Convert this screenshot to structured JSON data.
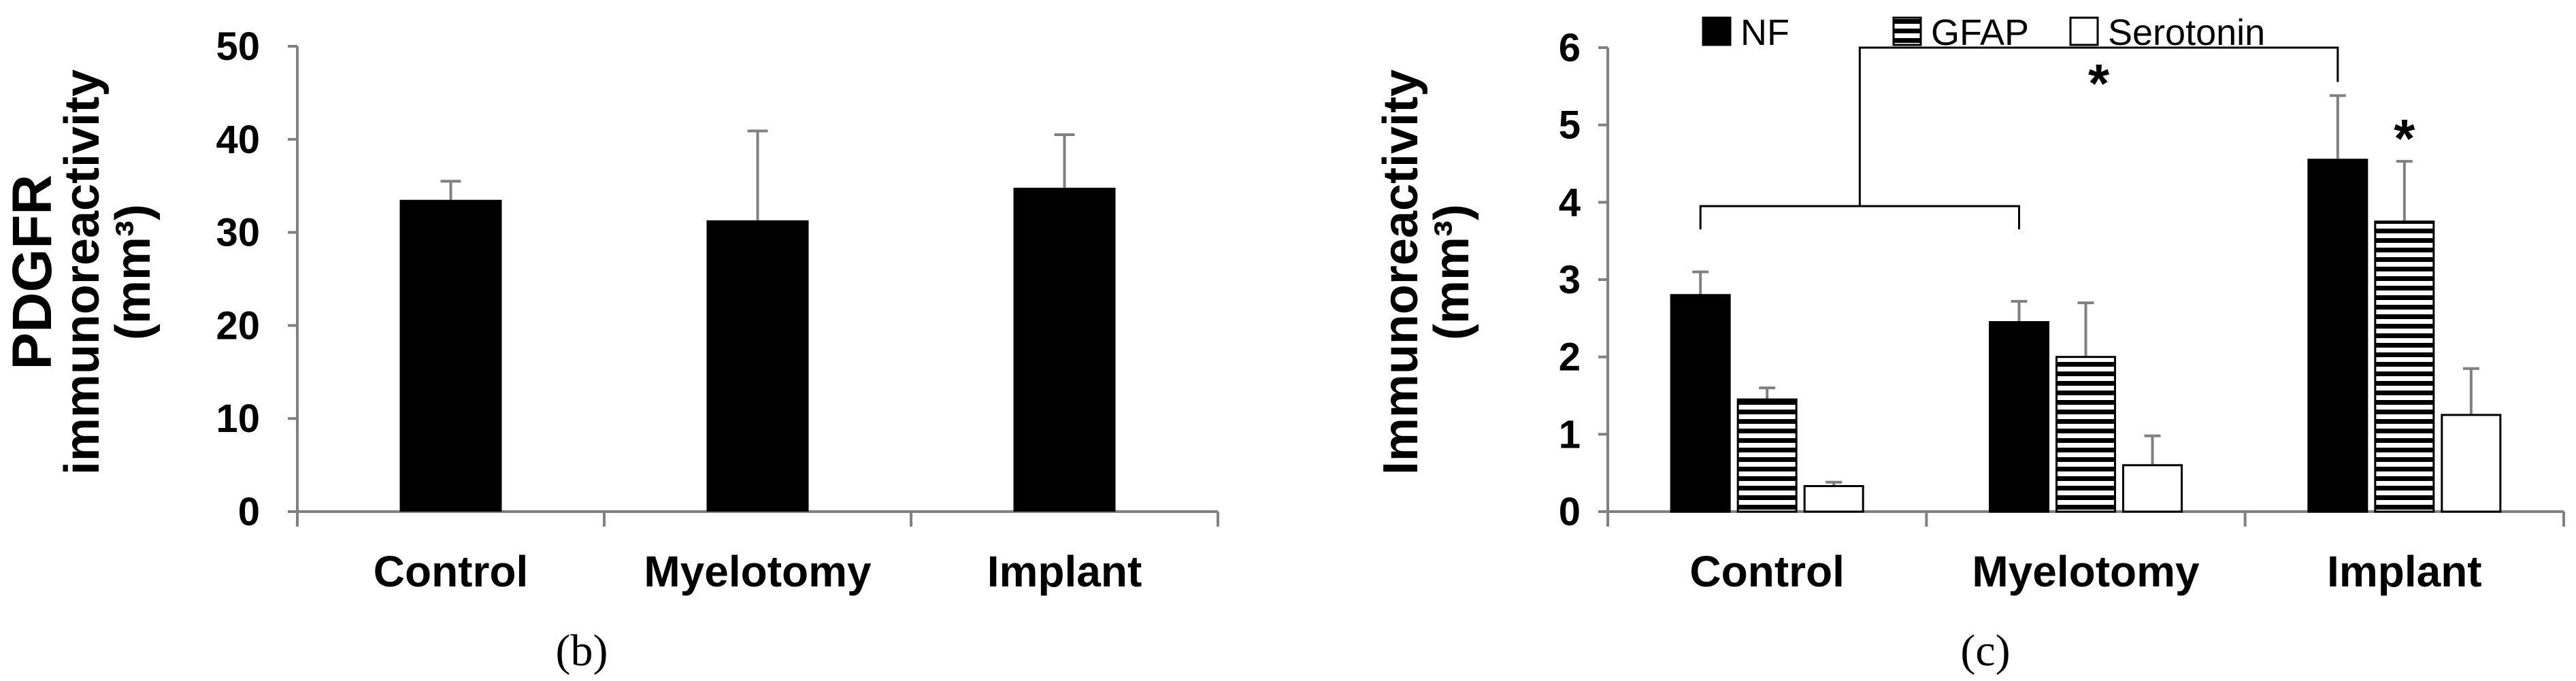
{
  "charts": [
    {
      "chart_data": {
        "type": "bar",
        "title": "",
        "panel_label": "(b)",
        "ylabel_line1": "PDGFR",
        "ylabel_line2": "immunoreactivity",
        "ylabel_line3": "(mm³)",
        "xlabel": "",
        "ylim": [
          0,
          50
        ],
        "yticks": [
          "0",
          "10",
          "20",
          "30",
          "40",
          "50"
        ],
        "categories": [
          "Control",
          "Myelotomy",
          "Implant"
        ],
        "series": [
          {
            "values": [
              33.5,
              31.3,
              34.8
            ],
            "errors": [
              2.0,
              9.6,
              5.7
            ],
            "color": "#000000"
          }
        ],
        "grid": false,
        "legend": "none"
      }
    },
    {
      "chart_data": {
        "type": "bar",
        "title": "",
        "panel_label": "(c)",
        "ylabel_line1": "Immunoreactivity",
        "ylabel_line2": "(mm³)",
        "xlabel": "",
        "ylim": [
          0,
          6
        ],
        "yticks": [
          "0",
          "1",
          "2",
          "3",
          "4",
          "5",
          "6"
        ],
        "categories": [
          "Control",
          "Myelotomy",
          "Implant"
        ],
        "series": [
          {
            "name": "NF",
            "fill": "solid-black",
            "values": [
              2.8,
              2.45,
              4.55
            ],
            "errors": [
              0.3,
              0.27,
              0.83
            ]
          },
          {
            "name": "GFAP",
            "fill": "horizontal-stripes",
            "values": [
              1.45,
              2.0,
              3.75
            ],
            "errors": [
              0.15,
              0.7,
              0.78
            ]
          },
          {
            "name": "Serotonin",
            "fill": "white",
            "values": [
              0.33,
              0.6,
              1.25
            ],
            "errors": [
              0.05,
              0.38,
              0.6
            ]
          }
        ],
        "annotations": [
          {
            "text": "*",
            "target": "bracket Control+Myelotomy vs Implant NF"
          },
          {
            "text": "*",
            "target": "Implant GFAP"
          }
        ],
        "grid": false,
        "legend": "top"
      }
    }
  ]
}
